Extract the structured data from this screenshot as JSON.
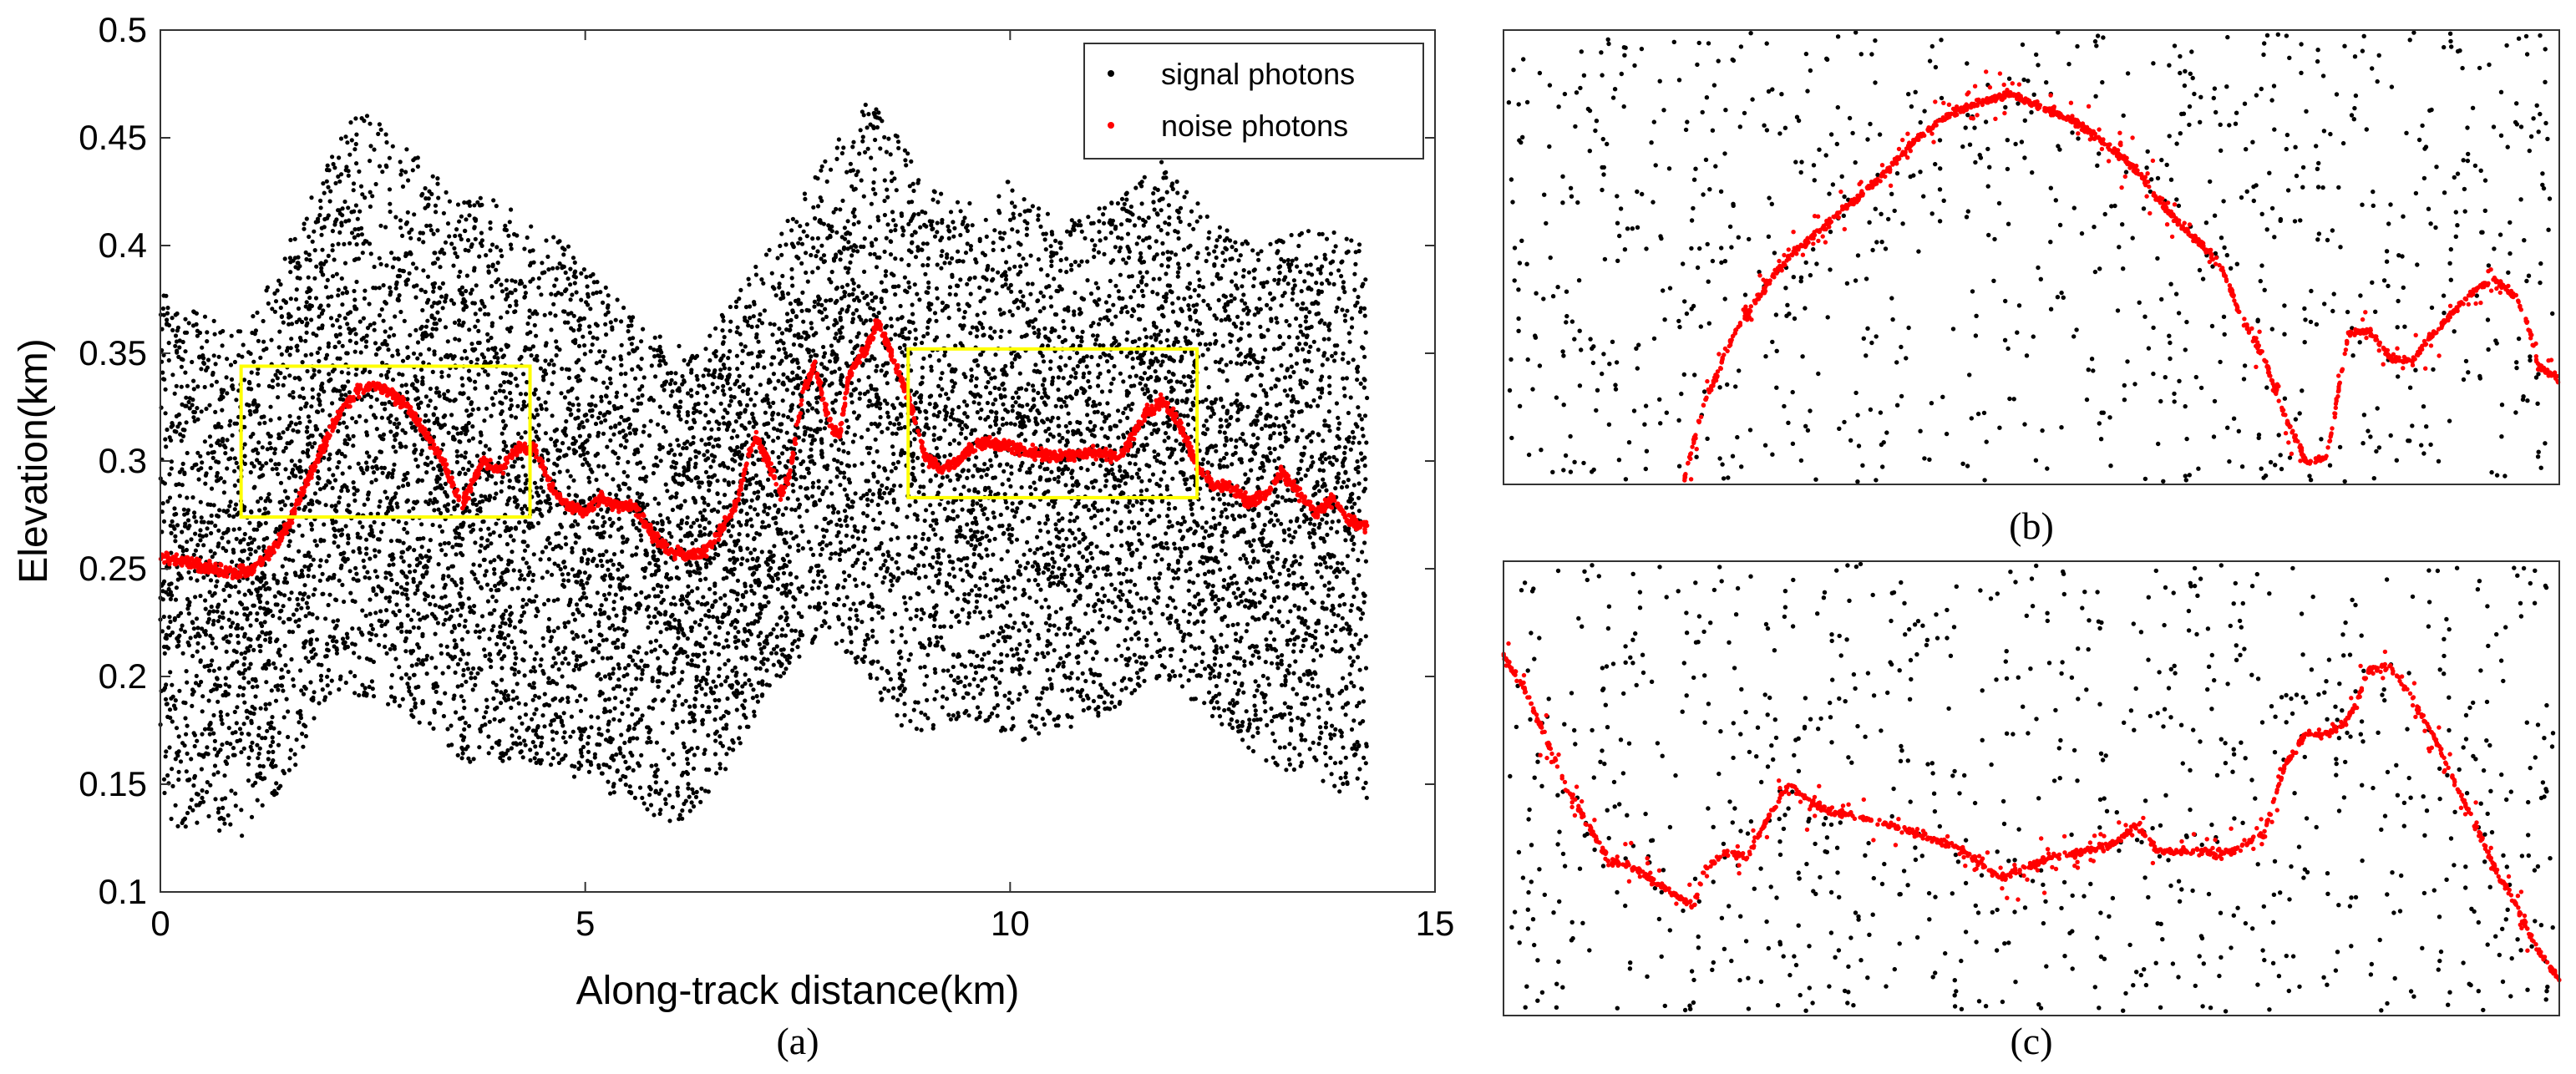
{
  "chart_data": [
    {
      "panel": "a",
      "caption": "(a)",
      "type": "scatter",
      "xlabel": "Along-track distance(km)",
      "ylabel": "Elevation(km)",
      "xlim": [
        0,
        15
      ],
      "ylim": [
        0.1,
        0.5
      ],
      "xticks": [
        "0",
        "5",
        "10",
        "15"
      ],
      "yticks": [
        "0.1",
        "0.15",
        "0.2",
        "0.25",
        "0.3",
        "0.35",
        "0.4",
        "0.45",
        "0.5"
      ],
      "legend": {
        "position": "top-right",
        "entries": [
          "signal photons",
          "noise photons"
        ]
      },
      "series": [
        {
          "name": "signal photons",
          "color": "#000000",
          "kind": "scatter-band",
          "x_range": [
            0,
            14.2
          ],
          "upper_envelope": [
            [
              0,
              0.38
            ],
            [
              0.5,
              0.37
            ],
            [
              1.0,
              0.36
            ],
            [
              1.5,
              0.4
            ],
            [
              2.0,
              0.44
            ],
            [
              2.3,
              0.465
            ],
            [
              2.8,
              0.45
            ],
            [
              3.3,
              0.43
            ],
            [
              4.0,
              0.42
            ],
            [
              4.8,
              0.4
            ],
            [
              5.5,
              0.37
            ],
            [
              6.3,
              0.35
            ],
            [
              6.8,
              0.38
            ],
            [
              7.2,
              0.4
            ],
            [
              7.8,
              0.44
            ],
            [
              8.3,
              0.47
            ],
            [
              8.7,
              0.45
            ],
            [
              9.3,
              0.42
            ],
            [
              10.0,
              0.43
            ],
            [
              10.6,
              0.41
            ],
            [
              11.2,
              0.42
            ],
            [
              11.8,
              0.44
            ],
            [
              12.4,
              0.41
            ],
            [
              13.0,
              0.4
            ],
            [
              13.6,
              0.41
            ],
            [
              14.2,
              0.4
            ]
          ],
          "lower_envelope": [
            [
              0,
              0.13
            ],
            [
              0.5,
              0.13
            ],
            [
              1.0,
              0.125
            ],
            [
              1.5,
              0.15
            ],
            [
              2.0,
              0.19
            ],
            [
              2.5,
              0.19
            ],
            [
              3.0,
              0.18
            ],
            [
              3.5,
              0.16
            ],
            [
              4.2,
              0.16
            ],
            [
              4.8,
              0.155
            ],
            [
              5.5,
              0.14
            ],
            [
              6.2,
              0.13
            ],
            [
              6.7,
              0.16
            ],
            [
              7.3,
              0.2
            ],
            [
              7.8,
              0.22
            ],
            [
              8.3,
              0.2
            ],
            [
              8.8,
              0.17
            ],
            [
              9.4,
              0.18
            ],
            [
              10.2,
              0.17
            ],
            [
              11.0,
              0.18
            ],
            [
              11.8,
              0.2
            ],
            [
              12.4,
              0.18
            ],
            [
              13.0,
              0.16
            ],
            [
              13.6,
              0.15
            ],
            [
              14.2,
              0.14
            ]
          ]
        },
        {
          "name": "noise photons",
          "color": "#ff0000",
          "kind": "scatter-line",
          "points": [
            [
              0,
              0.256
            ],
            [
              0.3,
              0.253
            ],
            [
              0.6,
              0.25
            ],
            [
              0.9,
              0.248
            ],
            [
              1.1,
              0.25
            ],
            [
              1.3,
              0.258
            ],
            [
              1.5,
              0.27
            ],
            [
              1.7,
              0.288
            ],
            [
              1.9,
              0.305
            ],
            [
              2.1,
              0.322
            ],
            [
              2.3,
              0.332
            ],
            [
              2.5,
              0.336
            ],
            [
              2.7,
              0.332
            ],
            [
              2.9,
              0.325
            ],
            [
              3.1,
              0.314
            ],
            [
              3.3,
              0.302
            ],
            [
              3.45,
              0.288
            ],
            [
              3.55,
              0.28
            ],
            [
              3.7,
              0.292
            ],
            [
              3.8,
              0.3
            ],
            [
              4.0,
              0.296
            ],
            [
              4.2,
              0.306
            ],
            [
              4.4,
              0.306
            ],
            [
              4.6,
              0.288
            ],
            [
              4.8,
              0.279
            ],
            [
              5.0,
              0.276
            ],
            [
              5.2,
              0.283
            ],
            [
              5.4,
              0.279
            ],
            [
              5.6,
              0.278
            ],
            [
              5.8,
              0.265
            ],
            [
              6.0,
              0.258
            ],
            [
              6.2,
              0.256
            ],
            [
              6.4,
              0.258
            ],
            [
              6.6,
              0.268
            ],
            [
              6.8,
              0.282
            ],
            [
              6.9,
              0.3
            ],
            [
              7.0,
              0.312
            ],
            [
              7.15,
              0.3
            ],
            [
              7.3,
              0.284
            ],
            [
              7.4,
              0.292
            ],
            [
              7.55,
              0.33
            ],
            [
              7.7,
              0.345
            ],
            [
              7.8,
              0.328
            ],
            [
              7.9,
              0.315
            ],
            [
              8.0,
              0.313
            ],
            [
              8.1,
              0.34
            ],
            [
              8.3,
              0.352
            ],
            [
              8.45,
              0.365
            ],
            [
              8.6,
              0.35
            ],
            [
              8.8,
              0.33
            ],
            [
              9.0,
              0.302
            ],
            [
              9.2,
              0.296
            ],
            [
              9.4,
              0.3
            ],
            [
              9.6,
              0.308
            ],
            [
              9.9,
              0.308
            ],
            [
              10.2,
              0.304
            ],
            [
              10.6,
              0.302
            ],
            [
              11.0,
              0.304
            ],
            [
              11.3,
              0.302
            ],
            [
              11.6,
              0.322
            ],
            [
              11.8,
              0.328
            ],
            [
              12.0,
              0.316
            ],
            [
              12.2,
              0.298
            ],
            [
              12.4,
              0.288
            ],
            [
              12.6,
              0.288
            ],
            [
              12.8,
              0.281
            ],
            [
              13.0,
              0.284
            ],
            [
              13.2,
              0.295
            ],
            [
              13.4,
              0.285
            ],
            [
              13.6,
              0.276
            ],
            [
              13.8,
              0.282
            ],
            [
              14.0,
              0.272
            ],
            [
              14.2,
              0.27
            ]
          ]
        }
      ],
      "highlight_boxes": [
        {
          "x": [
            0.95,
            4.35
          ],
          "y": [
            0.274,
            0.344
          ],
          "color": "#ffff00"
        },
        {
          "x": [
            8.8,
            12.2
          ],
          "y": [
            0.283,
            0.352
          ],
          "color": "#ffff00"
        }
      ]
    },
    {
      "panel": "b",
      "caption": "(b)",
      "type": "scatter",
      "note": "zoom of left yellow box, normalized 0-1 axes, no tick labels",
      "xlim": [
        0,
        1
      ],
      "ylim": [
        0,
        1
      ],
      "series": [
        {
          "name": "signal photons",
          "color": "#000000",
          "kind": "uniform-scatter"
        },
        {
          "name": "noise photons",
          "color": "#ff0000",
          "kind": "scatter-line",
          "points": [
            [
              0.17,
              0.0
            ],
            [
              0.19,
              0.18
            ],
            [
              0.22,
              0.34
            ],
            [
              0.25,
              0.44
            ],
            [
              0.27,
              0.5
            ],
            [
              0.3,
              0.56
            ],
            [
              0.33,
              0.62
            ],
            [
              0.36,
              0.68
            ],
            [
              0.39,
              0.76
            ],
            [
              0.42,
              0.81
            ],
            [
              0.45,
              0.84
            ],
            [
              0.48,
              0.86
            ],
            [
              0.51,
              0.83
            ],
            [
              0.54,
              0.8
            ],
            [
              0.57,
              0.75
            ],
            [
              0.6,
              0.69
            ],
            [
              0.63,
              0.6
            ],
            [
              0.66,
              0.53
            ],
            [
              0.68,
              0.48
            ],
            [
              0.7,
              0.36
            ],
            [
              0.72,
              0.28
            ],
            [
              0.74,
              0.15
            ],
            [
              0.76,
              0.05
            ],
            [
              0.78,
              0.06
            ],
            [
              0.8,
              0.33
            ],
            [
              0.82,
              0.34
            ],
            [
              0.84,
              0.28
            ],
            [
              0.86,
              0.27
            ],
            [
              0.88,
              0.33
            ],
            [
              0.9,
              0.38
            ],
            [
              0.92,
              0.43
            ],
            [
              0.94,
              0.45
            ],
            [
              0.96,
              0.41
            ],
            [
              0.97,
              0.35
            ],
            [
              0.98,
              0.26
            ],
            [
              1.0,
              0.23
            ]
          ]
        }
      ]
    },
    {
      "panel": "c",
      "caption": "(c)",
      "type": "scatter",
      "note": "zoom of right yellow box, normalized 0-1 axes, no tick labels",
      "xlim": [
        0,
        1
      ],
      "ylim": [
        0,
        1
      ],
      "series": [
        {
          "name": "signal photons",
          "color": "#000000",
          "kind": "uniform-scatter"
        },
        {
          "name": "noise photons",
          "color": "#ff0000",
          "kind": "scatter-line",
          "points": [
            [
              0.0,
              0.79
            ],
            [
              0.02,
              0.72
            ],
            [
              0.04,
              0.61
            ],
            [
              0.06,
              0.5
            ],
            [
              0.08,
              0.42
            ],
            [
              0.1,
              0.34
            ],
            [
              0.12,
              0.33
            ],
            [
              0.14,
              0.3
            ],
            [
              0.16,
              0.27
            ],
            [
              0.18,
              0.24
            ],
            [
              0.19,
              0.32
            ],
            [
              0.21,
              0.36
            ],
            [
              0.23,
              0.35
            ],
            [
              0.25,
              0.43
            ],
            [
              0.27,
              0.51
            ],
            [
              0.29,
              0.47
            ],
            [
              0.31,
              0.45
            ],
            [
              0.35,
              0.43
            ],
            [
              0.39,
              0.4
            ],
            [
              0.43,
              0.37
            ],
            [
              0.45,
              0.34
            ],
            [
              0.47,
              0.3
            ],
            [
              0.5,
              0.33
            ],
            [
              0.52,
              0.35
            ],
            [
              0.55,
              0.36
            ],
            [
              0.58,
              0.38
            ],
            [
              0.6,
              0.42
            ],
            [
              0.62,
              0.36
            ],
            [
              0.65,
              0.36
            ],
            [
              0.69,
              0.36
            ],
            [
              0.72,
              0.4
            ],
            [
              0.74,
              0.55
            ],
            [
              0.76,
              0.62
            ],
            [
              0.78,
              0.62
            ],
            [
              0.8,
              0.65
            ],
            [
              0.82,
              0.76
            ],
            [
              0.84,
              0.77
            ],
            [
              0.86,
              0.7
            ],
            [
              0.88,
              0.62
            ],
            [
              0.9,
              0.52
            ],
            [
              0.92,
              0.42
            ],
            [
              0.94,
              0.32
            ],
            [
              0.96,
              0.24
            ],
            [
              0.98,
              0.14
            ],
            [
              1.0,
              0.08
            ]
          ]
        }
      ]
    }
  ]
}
